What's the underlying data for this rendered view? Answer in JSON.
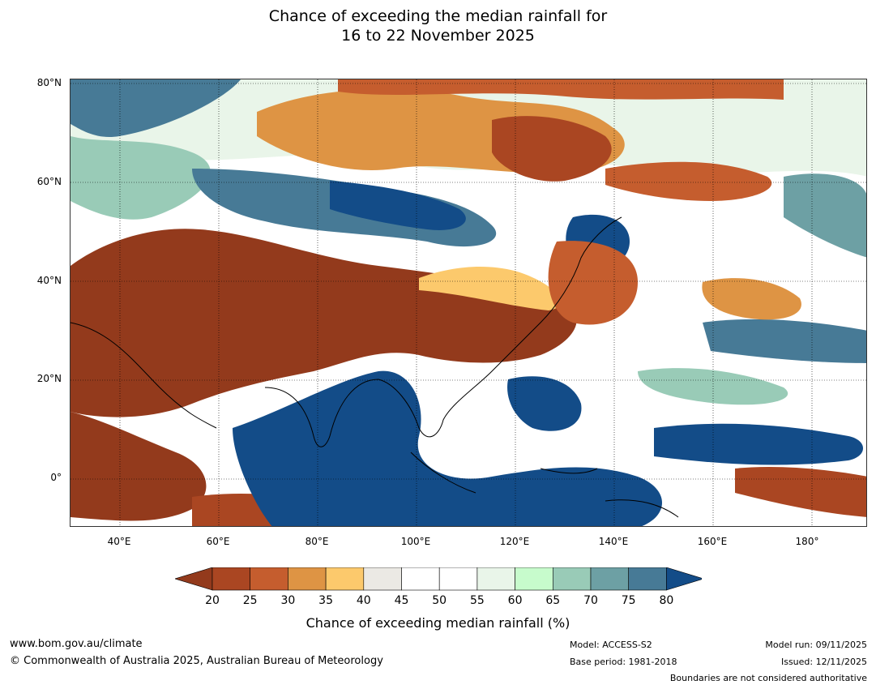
{
  "title": {
    "line1": "Chance of exceeding the median rainfall for",
    "line2": "16 to 22 November 2025"
  },
  "map": {
    "lat_labels": [
      "80°N",
      "60°N",
      "40°N",
      "20°N",
      "0°"
    ],
    "lon_labels": [
      "40°E",
      "60°E",
      "80°E",
      "100°E",
      "120°E",
      "140°E",
      "160°E",
      "180°"
    ],
    "palette": {
      "20": "#933a1c",
      "25": "#aa4622",
      "30": "#c55d2e",
      "35": "#de9444",
      "40": "#fcc96c",
      "45": "#ebe9e4",
      "55": "#ffffff",
      "60": "#e9f5e9",
      "65": "#c7fbcc",
      "70": "#99cbb7",
      "75": "#6da0a4",
      "80": "#477a96",
      "85": "#134c88"
    }
  },
  "colorbar": {
    "ticks": [
      "20",
      "25",
      "30",
      "35",
      "40",
      "45",
      "50",
      "55",
      "60",
      "65",
      "70",
      "75",
      "80"
    ],
    "colors": [
      "#933a1c",
      "#aa4622",
      "#c55d2e",
      "#de9444",
      "#fcc96c",
      "#ebe9e4",
      "#ffffff",
      "#ffffff",
      "#e9f5e9",
      "#c7fbcc",
      "#99cbb7",
      "#6da0a4",
      "#477a96",
      "#134c88"
    ],
    "label": "Chance of exceeding median rainfall (%)"
  },
  "footer": {
    "website": "www.bom.gov.au/climate",
    "copyright": "© Commonwealth of Australia 2025, Australian Bureau of Meteorology",
    "model": "Model: ACCESS-S2",
    "base_period": "Base period: 1981-2018",
    "model_run": "Model run: 09/11/2025",
    "issued": "Issued: 12/11/2025",
    "disclaimer": "Boundaries are not considered authoritative"
  }
}
